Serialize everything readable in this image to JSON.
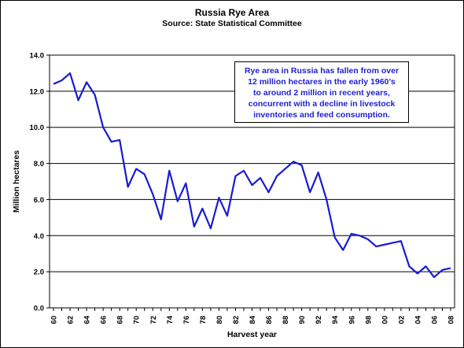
{
  "chart_data": {
    "type": "line",
    "title": "Russia  Rye Area",
    "subtitle": "Source:  State Statistical Committee",
    "xlabel": "Harvest year",
    "ylabel": "Million hectares",
    "ylim": [
      0,
      14
    ],
    "yticks": [
      "0.0",
      "2.0",
      "4.0",
      "6.0",
      "8.0",
      "10.0",
      "12.0",
      "14.0"
    ],
    "xticks": [
      "60",
      "62",
      "64",
      "66",
      "68",
      "70",
      "72",
      "74",
      "76",
      "78",
      "80",
      "82",
      "84",
      "86",
      "88",
      "90",
      "92",
      "94",
      "96",
      "98",
      "00",
      "02",
      "04",
      "06",
      "08"
    ],
    "grid": "horizontal",
    "legend": "none",
    "line_color": "#1a1ad0",
    "x": [
      1960,
      1961,
      1962,
      1963,
      1964,
      1965,
      1966,
      1967,
      1968,
      1969,
      1970,
      1971,
      1972,
      1973,
      1974,
      1975,
      1976,
      1977,
      1978,
      1979,
      1980,
      1981,
      1982,
      1983,
      1984,
      1985,
      1986,
      1987,
      1988,
      1989,
      1990,
      1991,
      1992,
      1993,
      1994,
      1995,
      1996,
      1997,
      1998,
      1999,
      2000,
      2001,
      2002,
      2003,
      2004,
      2005,
      2006,
      2007,
      2008
    ],
    "values": [
      12.4,
      12.6,
      13.0,
      11.5,
      12.5,
      11.8,
      10.0,
      9.2,
      9.3,
      6.7,
      7.7,
      7.4,
      6.3,
      4.9,
      7.6,
      5.9,
      6.9,
      4.5,
      5.5,
      4.4,
      6.1,
      5.1,
      7.3,
      7.6,
      6.8,
      7.2,
      6.4,
      7.3,
      7.7,
      8.1,
      7.9,
      6.4,
      7.5,
      6.0,
      3.9,
      3.2,
      4.1,
      4.0,
      3.8,
      3.4,
      3.5,
      3.6,
      3.7,
      2.3,
      1.9,
      2.3,
      1.7,
      2.1,
      2.2
    ],
    "annotation": [
      "Rye area in Russia has fallen from over",
      "12 million hectares in the early 1960’s",
      "to around 2 million in recent years,",
      "concurrent with a decline in livestock",
      "inventories and feed consumption."
    ]
  }
}
